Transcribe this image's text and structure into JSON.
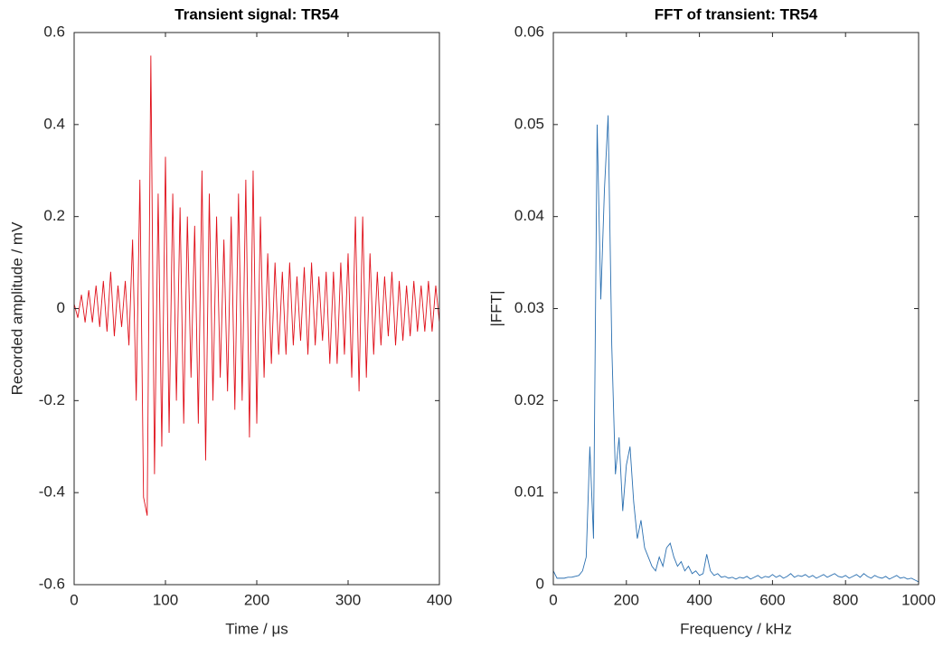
{
  "chart_data": [
    {
      "type": "line",
      "title": "Transient signal: TR54",
      "xlabel": "Time / μs",
      "ylabel": "Recorded amplitude / mV",
      "color": "#e0101a",
      "xlim": [
        0,
        400
      ],
      "ylim": [
        -0.6,
        0.6
      ],
      "xticks": [
        0,
        100,
        200,
        300,
        400
      ],
      "yticks": [
        -0.6,
        -0.4,
        -0.2,
        0,
        0.2,
        0.4,
        0.6
      ],
      "x": [
        0,
        4,
        8,
        12,
        16,
        20,
        24,
        28,
        32,
        36,
        40,
        44,
        48,
        52,
        56,
        60,
        64,
        68,
        72,
        76,
        80,
        84,
        88,
        92,
        96,
        100,
        104,
        108,
        112,
        116,
        120,
        124,
        128,
        132,
        136,
        140,
        144,
        148,
        152,
        156,
        160,
        164,
        168,
        172,
        176,
        180,
        184,
        188,
        192,
        196,
        200,
        204,
        208,
        212,
        216,
        220,
        224,
        228,
        232,
        236,
        240,
        244,
        248,
        252,
        256,
        260,
        264,
        268,
        272,
        276,
        280,
        284,
        288,
        292,
        296,
        300,
        304,
        308,
        312,
        316,
        320,
        324,
        328,
        332,
        336,
        340,
        344,
        348,
        352,
        356,
        360,
        364,
        368,
        372,
        376,
        380,
        384,
        388,
        392,
        396,
        400
      ],
      "values": [
        0.01,
        -0.02,
        0.03,
        -0.03,
        0.04,
        -0.03,
        0.05,
        -0.04,
        0.06,
        -0.05,
        0.08,
        -0.06,
        0.05,
        -0.04,
        0.06,
        -0.08,
        0.15,
        -0.2,
        0.28,
        -0.41,
        -0.45,
        0.55,
        -0.36,
        0.25,
        -0.3,
        0.33,
        -0.27,
        0.25,
        -0.2,
        0.22,
        -0.25,
        0.2,
        -0.15,
        0.18,
        -0.25,
        0.3,
        -0.33,
        0.25,
        -0.2,
        0.2,
        -0.15,
        0.15,
        -0.18,
        0.2,
        -0.22,
        0.25,
        -0.2,
        0.28,
        -0.28,
        0.3,
        -0.25,
        0.2,
        -0.15,
        0.12,
        -0.12,
        0.1,
        -0.1,
        0.08,
        -0.1,
        0.1,
        -0.08,
        0.07,
        -0.07,
        0.09,
        -0.1,
        0.1,
        -0.08,
        0.07,
        -0.07,
        0.08,
        -0.12,
        0.08,
        -0.12,
        0.1,
        -0.1,
        0.12,
        -0.15,
        0.2,
        -0.18,
        0.2,
        -0.15,
        0.12,
        -0.1,
        0.08,
        -0.08,
        0.07,
        -0.06,
        0.08,
        -0.08,
        0.06,
        -0.07,
        0.05,
        -0.06,
        0.06,
        -0.05,
        0.05,
        -0.05,
        0.06,
        -0.05,
        0.05,
        -0.03
      ]
    },
    {
      "type": "line",
      "title": "FFT of transient: TR54",
      "xlabel": "Frequency / kHz",
      "ylabel": "|FFT|",
      "color": "#2a6fb0",
      "xlim": [
        0,
        1000
      ],
      "ylim": [
        0,
        0.06
      ],
      "xticks": [
        0,
        200,
        400,
        600,
        800,
        1000
      ],
      "yticks": [
        0,
        0.01,
        0.02,
        0.03,
        0.04,
        0.05,
        0.06
      ],
      "x": [
        0,
        10,
        20,
        30,
        40,
        50,
        60,
        70,
        80,
        90,
        100,
        110,
        120,
        130,
        140,
        150,
        160,
        170,
        180,
        190,
        200,
        210,
        220,
        230,
        240,
        250,
        260,
        270,
        280,
        290,
        300,
        310,
        320,
        330,
        340,
        350,
        360,
        370,
        380,
        390,
        400,
        410,
        420,
        430,
        440,
        450,
        460,
        470,
        480,
        490,
        500,
        510,
        520,
        530,
        540,
        550,
        560,
        570,
        580,
        590,
        600,
        610,
        620,
        630,
        640,
        650,
        660,
        670,
        680,
        690,
        700,
        710,
        720,
        730,
        740,
        750,
        760,
        770,
        780,
        790,
        800,
        810,
        820,
        830,
        840,
        850,
        860,
        870,
        880,
        890,
        900,
        910,
        920,
        930,
        940,
        950,
        960,
        970,
        980,
        990,
        1000
      ],
      "values": [
        0.0015,
        0.0007,
        0.0007,
        0.0007,
        0.0008,
        0.0008,
        0.0009,
        0.001,
        0.0015,
        0.003,
        0.015,
        0.005,
        0.05,
        0.031,
        0.043,
        0.051,
        0.026,
        0.012,
        0.016,
        0.008,
        0.013,
        0.015,
        0.009,
        0.005,
        0.007,
        0.004,
        0.003,
        0.002,
        0.0015,
        0.003,
        0.002,
        0.004,
        0.0045,
        0.003,
        0.002,
        0.0025,
        0.0015,
        0.002,
        0.0012,
        0.0015,
        0.001,
        0.0012,
        0.0033,
        0.0015,
        0.001,
        0.0012,
        0.0008,
        0.0009,
        0.0007,
        0.0008,
        0.0006,
        0.0008,
        0.0007,
        0.0009,
        0.0006,
        0.0008,
        0.001,
        0.0007,
        0.0009,
        0.0008,
        0.0011,
        0.0008,
        0.001,
        0.0007,
        0.0009,
        0.0012,
        0.0008,
        0.001,
        0.0009,
        0.0011,
        0.0008,
        0.001,
        0.0007,
        0.0009,
        0.0011,
        0.0008,
        0.001,
        0.0012,
        0.0009,
        0.0008,
        0.001,
        0.0007,
        0.0009,
        0.0011,
        0.0008,
        0.0012,
        0.0009,
        0.0007,
        0.001,
        0.0008,
        0.0007,
        0.0009,
        0.0006,
        0.0008,
        0.001,
        0.0007,
        0.0008,
        0.0006,
        0.0007,
        0.0005,
        0.0003
      ]
    }
  ]
}
